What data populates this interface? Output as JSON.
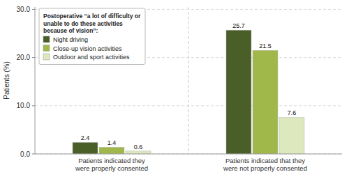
{
  "chart_data": {
    "type": "bar",
    "categories": [
      "Patients indicated they\nwere properly consented",
      "Patients indicated that they\nwere not properly consented"
    ],
    "series": [
      {
        "name": "Night driving",
        "color": "#4a5e28",
        "values": [
          2.4,
          25.7
        ]
      },
      {
        "name": "Close-up vision activities",
        "color": "#a0b84a",
        "values": [
          1.4,
          21.5
        ]
      },
      {
        "name": "Outdoor and sport activities",
        "color": "#dde8be",
        "values": [
          0.6,
          7.6
        ]
      }
    ],
    "y_label": "Patients (%)",
    "legend_title": "Postoperative “a lot of difficulty or\nunable to do these activities\nbecause of vision”:",
    "ylim": [
      0,
      30.5
    ],
    "yticks": [
      {
        "value": 0,
        "label": "0.0"
      },
      {
        "value": 10,
        "label": "10.0"
      },
      {
        "value": 20,
        "label": "20.0"
      },
      {
        "value": 30,
        "label": "30.0"
      }
    ],
    "grid": true,
    "legend": "upper left",
    "data_labels": true
  }
}
